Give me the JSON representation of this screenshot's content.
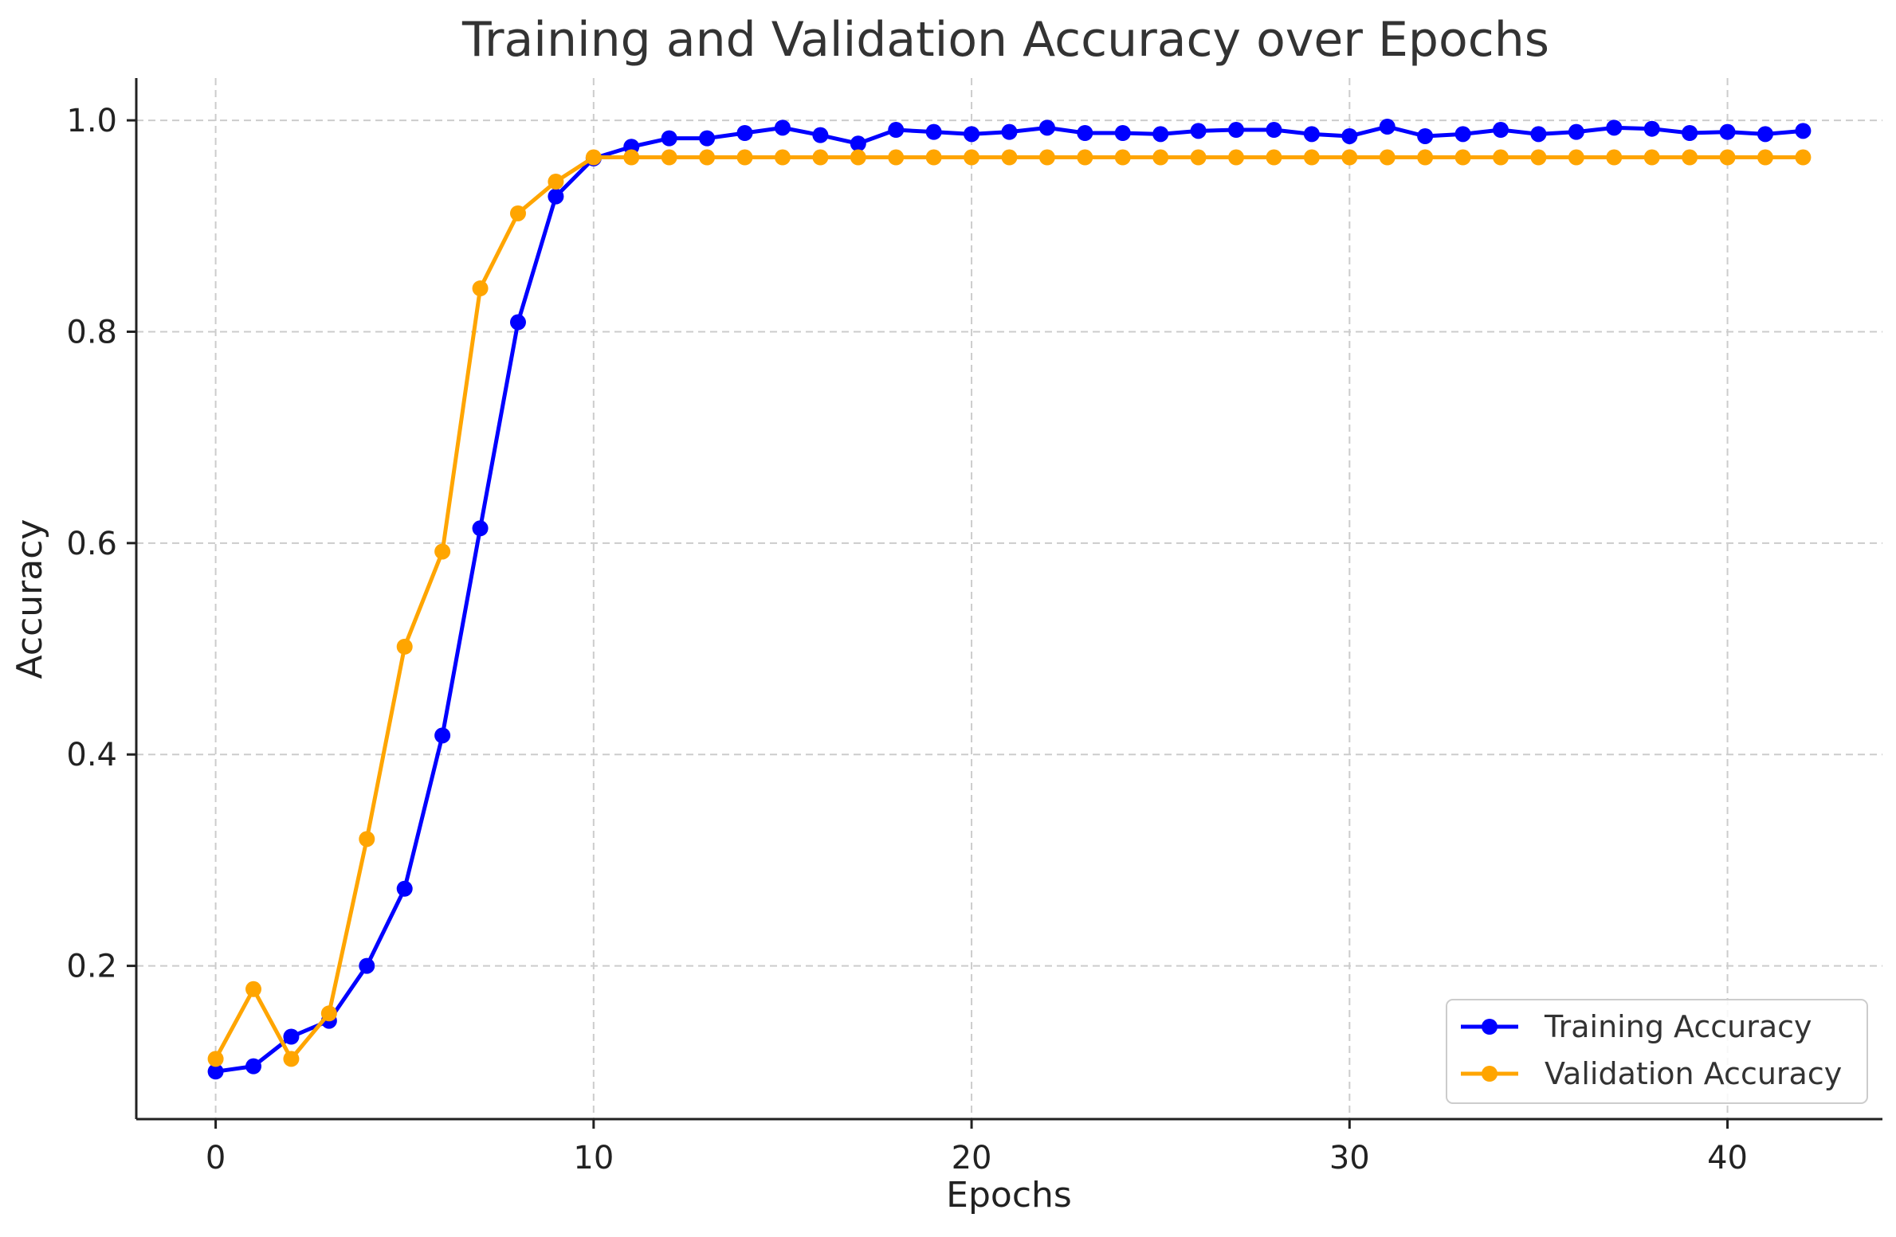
{
  "chart_data": {
    "type": "line",
    "title": "Training and Validation Accuracy over Epochs",
    "xlabel": "Epochs",
    "ylabel": "Accuracy",
    "xlim": [
      -2.1,
      44.1
    ],
    "ylim": [
      0.055,
      1.04
    ],
    "xticks": [
      0,
      10,
      20,
      30,
      40
    ],
    "yticks": [
      0.2,
      0.4,
      0.6,
      0.8,
      1.0
    ],
    "xtick_labels": [
      "0",
      "10",
      "20",
      "30",
      "40"
    ],
    "ytick_labels": [
      "0.2",
      "0.4",
      "0.6",
      "0.8",
      "1.0"
    ],
    "grid": true,
    "legend_position": "bottom-right",
    "x": [
      0,
      1,
      2,
      3,
      4,
      5,
      6,
      7,
      8,
      9,
      10,
      11,
      12,
      13,
      14,
      15,
      16,
      17,
      18,
      19,
      20,
      21,
      22,
      23,
      24,
      25,
      26,
      27,
      28,
      29,
      30,
      31,
      32,
      33,
      34,
      35,
      36,
      37,
      38,
      39,
      40,
      41,
      42
    ],
    "series": [
      {
        "name": "Training Accuracy",
        "color": "#0000ff",
        "values": [
          0.1,
          0.105,
          0.133,
          0.148,
          0.2,
          0.273,
          0.418,
          0.614,
          0.809,
          0.928,
          0.964,
          0.975,
          0.983,
          0.983,
          0.988,
          0.993,
          0.986,
          0.978,
          0.991,
          0.989,
          0.987,
          0.989,
          0.993,
          0.988,
          0.988,
          0.987,
          0.99,
          0.991,
          0.991,
          0.987,
          0.985,
          0.994,
          0.985,
          0.987,
          0.991,
          0.987,
          0.989,
          0.993,
          0.992,
          0.988,
          0.989,
          0.987,
          0.99
        ]
      },
      {
        "name": "Validation Accuracy",
        "color": "#ffa500",
        "values": [
          0.112,
          0.178,
          0.112,
          0.155,
          0.32,
          0.502,
          0.592,
          0.841,
          0.912,
          0.942,
          0.965,
          0.965,
          0.965,
          0.965,
          0.965,
          0.965,
          0.965,
          0.965,
          0.965,
          0.965,
          0.965,
          0.965,
          0.965,
          0.965,
          0.965,
          0.965,
          0.965,
          0.965,
          0.965,
          0.965,
          0.965,
          0.965,
          0.965,
          0.965,
          0.965,
          0.965,
          0.965,
          0.965,
          0.965,
          0.965,
          0.965,
          0.965,
          0.965
        ]
      }
    ]
  }
}
